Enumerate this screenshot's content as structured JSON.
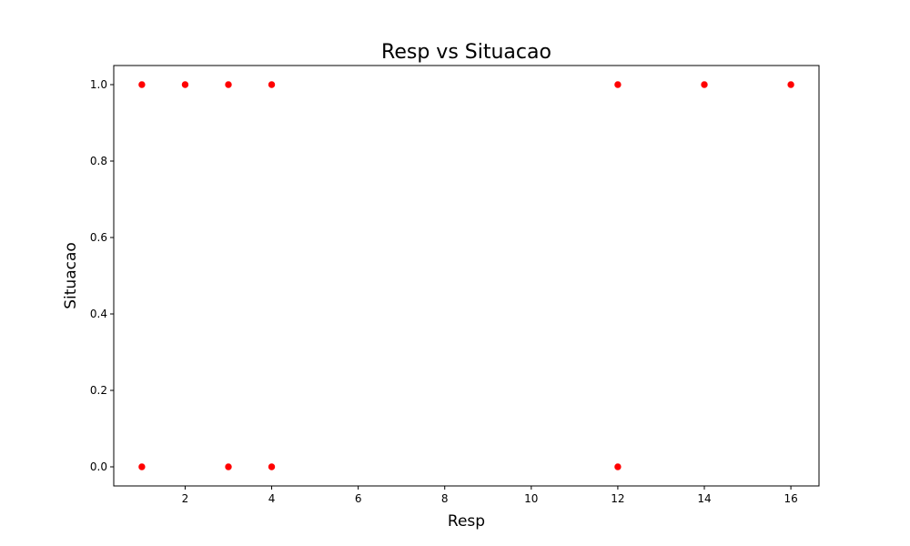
{
  "chart_data": {
    "type": "scatter",
    "title": "Resp vs Situacao",
    "xlabel": "Resp",
    "ylabel": "Situacao",
    "xlim": [
      0.35,
      16.65
    ],
    "ylim": [
      -0.05,
      1.05
    ],
    "xticks": [
      2,
      4,
      6,
      8,
      10,
      12,
      14,
      16
    ],
    "yticks": [
      0.0,
      0.2,
      0.4,
      0.6,
      0.8,
      1.0
    ],
    "xtick_labels": [
      "2",
      "4",
      "6",
      "8",
      "10",
      "12",
      "14",
      "16"
    ],
    "ytick_labels": [
      "0.0",
      "0.2",
      "0.4",
      "0.6",
      "0.8",
      "1.0"
    ],
    "grid": false,
    "marker_color": "#ff0000",
    "points": [
      {
        "x": 1,
        "y": 1.0
      },
      {
        "x": 2,
        "y": 1.0
      },
      {
        "x": 3,
        "y": 1.0
      },
      {
        "x": 4,
        "y": 1.0
      },
      {
        "x": 12,
        "y": 1.0
      },
      {
        "x": 14,
        "y": 1.0
      },
      {
        "x": 16,
        "y": 1.0
      },
      {
        "x": 1,
        "y": 0.0
      },
      {
        "x": 3,
        "y": 0.0
      },
      {
        "x": 4,
        "y": 0.0
      },
      {
        "x": 12,
        "y": 0.0
      }
    ]
  }
}
